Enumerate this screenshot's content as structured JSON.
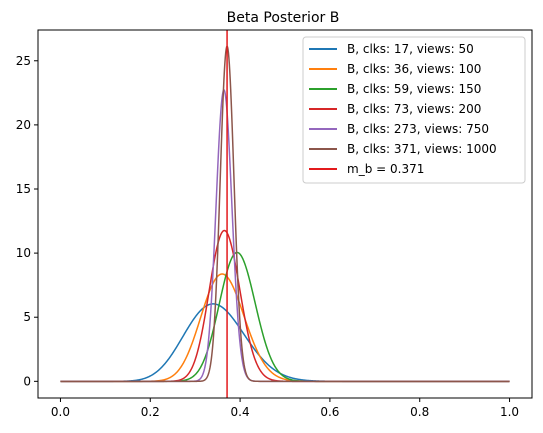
{
  "chart_data": {
    "type": "line",
    "title": "Beta Posterior B",
    "xlabel": "",
    "ylabel": "",
    "xlim": [
      -0.05,
      1.05
    ],
    "ylim": [
      -1.3,
      27.4
    ],
    "x_ticks": [
      "0.0",
      "0.2",
      "0.4",
      "0.6",
      "0.8",
      "1.0"
    ],
    "x_tick_values": [
      0.0,
      0.2,
      0.4,
      0.6,
      0.8,
      1.0
    ],
    "y_ticks": [
      "0",
      "5",
      "10",
      "15",
      "20",
      "25"
    ],
    "y_tick_values": [
      0,
      5,
      10,
      15,
      20,
      25
    ],
    "grid": false,
    "legend_position": "top-right",
    "series": [
      {
        "name": "B, clks: 17, views: 50",
        "color": "#1f77b4",
        "distribution": "beta",
        "alpha": 18,
        "beta": 34
      },
      {
        "name": "B, clks: 36, views: 100",
        "color": "#ff7f0e",
        "distribution": "beta",
        "alpha": 37,
        "beta": 65
      },
      {
        "name": "B, clks: 59, views: 150",
        "color": "#2ca02c",
        "distribution": "beta",
        "alpha": 60,
        "beta": 92
      },
      {
        "name": "B, clks: 73, views: 200",
        "color": "#d62728",
        "distribution": "beta",
        "alpha": 74,
        "beta": 128
      },
      {
        "name": "B, clks: 273, views: 750",
        "color": "#9467bd",
        "distribution": "beta",
        "alpha": 274,
        "beta": 478
      },
      {
        "name": "B, clks: 371, views: 1000",
        "color": "#8c564b",
        "distribution": "beta",
        "alpha": 372,
        "beta": 630
      }
    ],
    "vline": {
      "name": "m_b = 0.371",
      "x": 0.371,
      "color": "#e31a1c"
    }
  }
}
